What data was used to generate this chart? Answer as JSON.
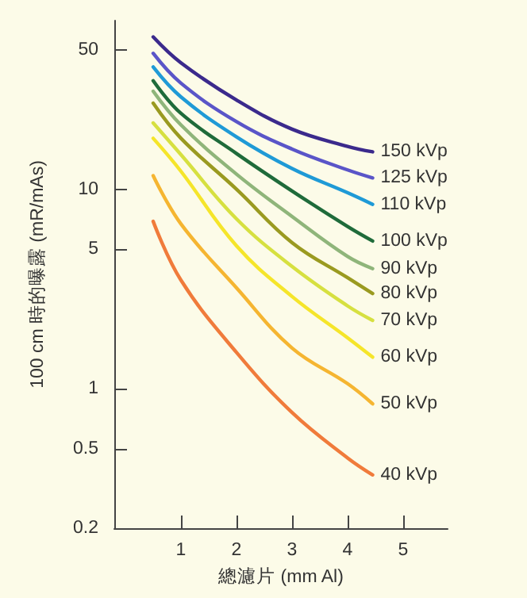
{
  "chart_data": {
    "type": "line",
    "xlabel": "總濾片 (mm Al)",
    "ylabel": "100 cm 時的曝露 (mR/mAs)",
    "log": "y",
    "xlim": [
      -0.2,
      5.8
    ],
    "xticks": [
      1,
      2,
      3,
      4,
      5
    ],
    "ylim": [
      0.2,
      70
    ],
    "yticks": [
      0.2,
      0.5,
      1,
      5,
      10,
      50
    ],
    "grid": false,
    "legend": false,
    "marker": "none",
    "line_style": "solid",
    "x": [
      0.5,
      1,
      2,
      3,
      4,
      4.45
    ],
    "series": [
      {
        "name": "150 kVp",
        "color": "#3b2a8c",
        "values": [
          58,
          43,
          28,
          20,
          16.4,
          15.4
        ]
      },
      {
        "name": "125 kVp",
        "color": "#5a55c8",
        "values": [
          48,
          34,
          21.8,
          15.9,
          12.5,
          11.4
        ]
      },
      {
        "name": "110 kVp",
        "color": "#1f9ad6",
        "values": [
          41,
          29,
          18.3,
          12.7,
          9.6,
          8.4
        ]
      },
      {
        "name": "100 kVp",
        "color": "#1f6b3a",
        "values": [
          35,
          24,
          15.1,
          9.8,
          6.5,
          5.5
        ]
      },
      {
        "name": "90 kVp",
        "color": "#8fb57a",
        "values": [
          31,
          21,
          11.9,
          7.3,
          4.6,
          4
        ]
      },
      {
        "name": "80 kVp",
        "color": "#9a9a20",
        "values": [
          27,
          18,
          10,
          5.4,
          3.6,
          3
        ]
      },
      {
        "name": "70 kVp",
        "color": "#d6e040",
        "values": [
          21.5,
          14.9,
          7.1,
          4.1,
          2.6,
          2.2
        ]
      },
      {
        "name": "60 kVp",
        "color": "#f5e52a",
        "values": [
          18,
          12.3,
          5.2,
          2.9,
          1.8,
          1.44
        ]
      },
      {
        "name": "50 kVp",
        "color": "#f5b531",
        "values": [
          11.7,
          6.7,
          3.2,
          1.6,
          1.06,
          0.84
        ]
      },
      {
        "name": "40 kVp",
        "color": "#f07b3b",
        "values": [
          6.9,
          3.5,
          1.52,
          0.76,
          0.45,
          0.37
        ]
      }
    ]
  }
}
